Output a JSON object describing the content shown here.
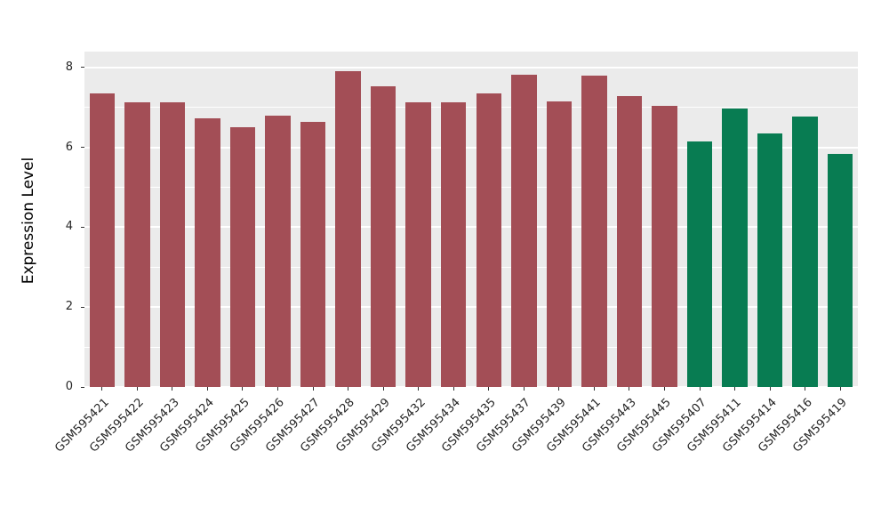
{
  "chart_data": {
    "type": "bar",
    "title": "",
    "xlabel": "",
    "ylabel": "Expression Level",
    "ylim": [
      0,
      8.4
    ],
    "yticks": [
      0,
      2,
      4,
      6,
      8
    ],
    "minor_gridlines": [
      1,
      3,
      5,
      7
    ],
    "grid": "on",
    "legend_position": "none",
    "panel_bg": "#EBEBEB",
    "grid_color": "#FFFFFF",
    "categories": [
      "GSM595421",
      "GSM595422",
      "GSM595423",
      "GSM595424",
      "GSM595425",
      "GSM595426",
      "GSM595427",
      "GSM595428",
      "GSM595429",
      "GSM595432",
      "GSM595434",
      "GSM595435",
      "GSM595437",
      "GSM595439",
      "GSM595441",
      "GSM595443",
      "GSM595445",
      "GSM595407",
      "GSM595411",
      "GSM595414",
      "GSM595416",
      "GSM595419"
    ],
    "values": [
      7.35,
      7.12,
      7.12,
      6.73,
      6.5,
      6.8,
      6.65,
      7.9,
      7.53,
      7.13,
      7.13,
      7.35,
      7.83,
      7.15,
      7.8,
      7.28,
      7.05,
      6.15,
      6.98,
      6.35,
      6.77,
      5.83
    ],
    "bar_groups": [
      "red",
      "red",
      "red",
      "red",
      "red",
      "red",
      "red",
      "red",
      "red",
      "red",
      "red",
      "red",
      "red",
      "red",
      "red",
      "red",
      "red",
      "green",
      "green",
      "green",
      "green",
      "green"
    ],
    "group_colors": {
      "red": "#A34E56",
      "green": "#087C52"
    }
  }
}
